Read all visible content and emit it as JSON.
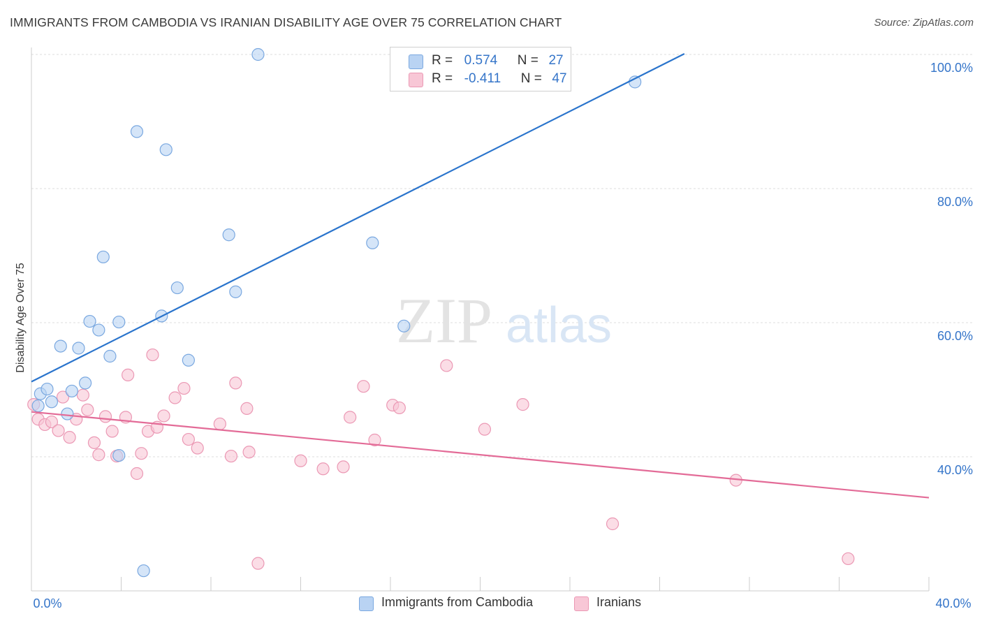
{
  "title": "IMMIGRANTS FROM CAMBODIA VS IRANIAN DISABILITY AGE OVER 75 CORRELATION CHART",
  "source": "Source: ZipAtlas.com",
  "watermark": {
    "zip": "ZIP",
    "atlas": "atlas"
  },
  "stats": {
    "r_label": "R =",
    "n_label": "N =",
    "series1": {
      "r": "0.574",
      "n": "27"
    },
    "series2": {
      "r": "-0.411",
      "n": "47"
    }
  },
  "colors": {
    "series1_fill": "#b9d3f3",
    "series1_stroke": "#7aa8e0",
    "series1_line": "#2a74cc",
    "series2_fill": "#f8c7d6",
    "series2_stroke": "#eb98b4",
    "series2_line": "#e36b97",
    "tick_text": "#3575c9",
    "grid": "#dcdcdc"
  },
  "chart_data": {
    "type": "scatter",
    "title": "IMMIGRANTS FROM CAMBODIA VS IRANIAN DISABILITY AGE OVER 75 CORRELATION CHART",
    "xlabel": "",
    "ylabel": "Disability Age Over 75",
    "xlim": [
      0,
      40
    ],
    "ylim": [
      22,
      102
    ],
    "x_ticks": [
      {
        "value": 0,
        "label": "0.0%"
      },
      {
        "value": 40,
        "label": "40.0%"
      }
    ],
    "y_ticks": [
      {
        "value": 40,
        "label": "40.0%"
      },
      {
        "value": 60,
        "label": "60.0%"
      },
      {
        "value": 80,
        "label": "80.0%"
      },
      {
        "value": 100,
        "label": "100.0%"
      }
    ],
    "grid": true,
    "legend_position": "bottom-center",
    "series": [
      {
        "name": "Immigrants from Cambodia",
        "points": [
          [
            0.3,
            47.6
          ],
          [
            0.4,
            49.4
          ],
          [
            0.7,
            50.1
          ],
          [
            0.9,
            48.2
          ],
          [
            1.3,
            56.5
          ],
          [
            1.6,
            46.4
          ],
          [
            1.8,
            49.8
          ],
          [
            2.1,
            56.2
          ],
          [
            2.4,
            51.0
          ],
          [
            2.6,
            60.2
          ],
          [
            3.0,
            58.9
          ],
          [
            3.2,
            69.8
          ],
          [
            3.5,
            55.0
          ],
          [
            3.9,
            60.1
          ],
          [
            3.9,
            40.2
          ],
          [
            4.7,
            88.5
          ],
          [
            5.0,
            23.0
          ],
          [
            6.0,
            85.8
          ],
          [
            5.8,
            61.0
          ],
          [
            6.5,
            65.2
          ],
          [
            7.0,
            54.4
          ],
          [
            8.8,
            73.1
          ],
          [
            9.1,
            64.6
          ],
          [
            10.1,
            100.0
          ],
          [
            15.2,
            71.9
          ],
          [
            16.6,
            59.5
          ],
          [
            26.9,
            95.9
          ]
        ],
        "trend": {
          "x": [
            0,
            29.1
          ],
          "y": [
            51.2,
            100.1
          ]
        }
      },
      {
        "name": "Iranians",
        "points": [
          [
            0.1,
            47.8
          ],
          [
            0.3,
            45.6
          ],
          [
            0.6,
            44.8
          ],
          [
            0.9,
            45.2
          ],
          [
            1.2,
            43.9
          ],
          [
            1.4,
            48.9
          ],
          [
            1.7,
            42.9
          ],
          [
            2.0,
            45.6
          ],
          [
            2.3,
            49.2
          ],
          [
            2.5,
            47.0
          ],
          [
            2.8,
            42.1
          ],
          [
            3.0,
            40.3
          ],
          [
            3.3,
            46.0
          ],
          [
            3.6,
            43.8
          ],
          [
            3.8,
            40.1
          ],
          [
            4.2,
            45.9
          ],
          [
            4.3,
            52.2
          ],
          [
            4.7,
            37.5
          ],
          [
            4.9,
            40.5
          ],
          [
            5.2,
            43.8
          ],
          [
            5.4,
            55.2
          ],
          [
            5.6,
            44.4
          ],
          [
            5.9,
            46.1
          ],
          [
            6.4,
            48.8
          ],
          [
            6.8,
            50.2
          ],
          [
            7.0,
            42.6
          ],
          [
            7.4,
            41.3
          ],
          [
            8.4,
            44.9
          ],
          [
            8.9,
            40.1
          ],
          [
            9.1,
            51.0
          ],
          [
            9.6,
            47.2
          ],
          [
            9.7,
            40.7
          ],
          [
            10.1,
            24.1
          ],
          [
            12.0,
            39.4
          ],
          [
            13.0,
            38.2
          ],
          [
            13.9,
            38.5
          ],
          [
            14.2,
            45.9
          ],
          [
            14.8,
            50.5
          ],
          [
            15.3,
            42.5
          ],
          [
            16.1,
            47.7
          ],
          [
            16.4,
            47.3
          ],
          [
            18.5,
            53.6
          ],
          [
            20.2,
            44.1
          ],
          [
            21.9,
            47.8
          ],
          [
            25.9,
            30.0
          ],
          [
            31.4,
            36.5
          ],
          [
            36.4,
            24.8
          ]
        ],
        "trend": {
          "x": [
            0,
            40
          ],
          "y": [
            46.7,
            33.9
          ]
        }
      }
    ]
  },
  "legend": {
    "series1": "Immigrants from Cambodia",
    "series2": "Iranians"
  }
}
